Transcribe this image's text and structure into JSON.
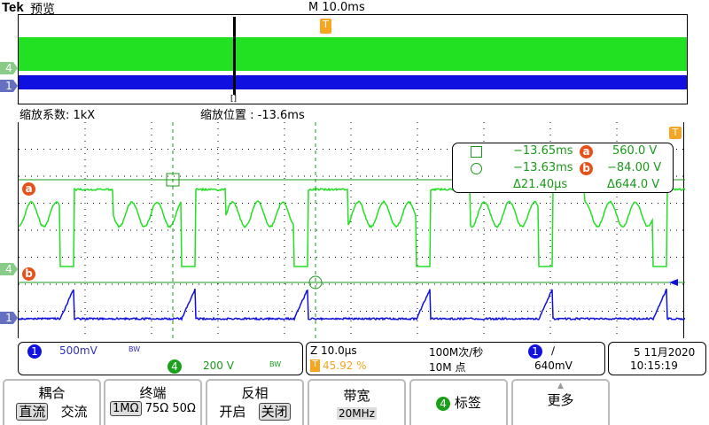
{
  "header": {
    "brand": "Tek",
    "mode": "预览",
    "timebase": "M 10.0ms"
  },
  "zoom": {
    "factor_label": "缩放系数: 1kX",
    "position_label": "缩放位置 :  -13.6ms"
  },
  "markers": {
    "ch4": "4",
    "ch1": "1",
    "trigger": "T",
    "cursor_a": "a",
    "cursor_b": "b"
  },
  "cursor_readout": {
    "a_time": "−13.65ms",
    "a_value": "560.0 V",
    "b_time": "−13.63ms",
    "b_value": "−84.00 V",
    "delta_time": "Δ21.40µs",
    "delta_value": "Δ644.0 V"
  },
  "channels": {
    "ch1": {
      "num": "1",
      "scale": "500mV",
      "bw": "BW",
      "color": "#1010e0"
    },
    "ch4": {
      "num": "4",
      "scale": "200 V",
      "bw": "BW",
      "color": "#1aa01a"
    }
  },
  "timebase": {
    "zoom": "Z 10.0µs",
    "sample_rate": "100M次/秒",
    "trigger_pos": "45.92 %",
    "record": "10M 点",
    "trig_ch": "1",
    "trig_slope": "∕",
    "trig_level": "640mV"
  },
  "datetime": {
    "date": "5 11月2020",
    "time": "10:15:19"
  },
  "buttons": [
    {
      "title": "耦合",
      "opts": [
        "直流",
        "交流"
      ],
      "selected": 0
    },
    {
      "title": "终端",
      "opts": [
        "1MΩ",
        "75Ω",
        "50Ω"
      ],
      "selected": 0
    },
    {
      "title": "反相",
      "opts": [
        "开启",
        "关闭"
      ],
      "selected": 1
    },
    {
      "title": "带宽",
      "value": "20MHz"
    },
    {
      "title": "标签",
      "chip": "4"
    },
    {
      "title": "更多"
    }
  ],
  "colors": {
    "ch4": "#22e022",
    "ch1": "#1010e0",
    "trigger": "#f5a623",
    "cursor": "#1a9a1a"
  }
}
